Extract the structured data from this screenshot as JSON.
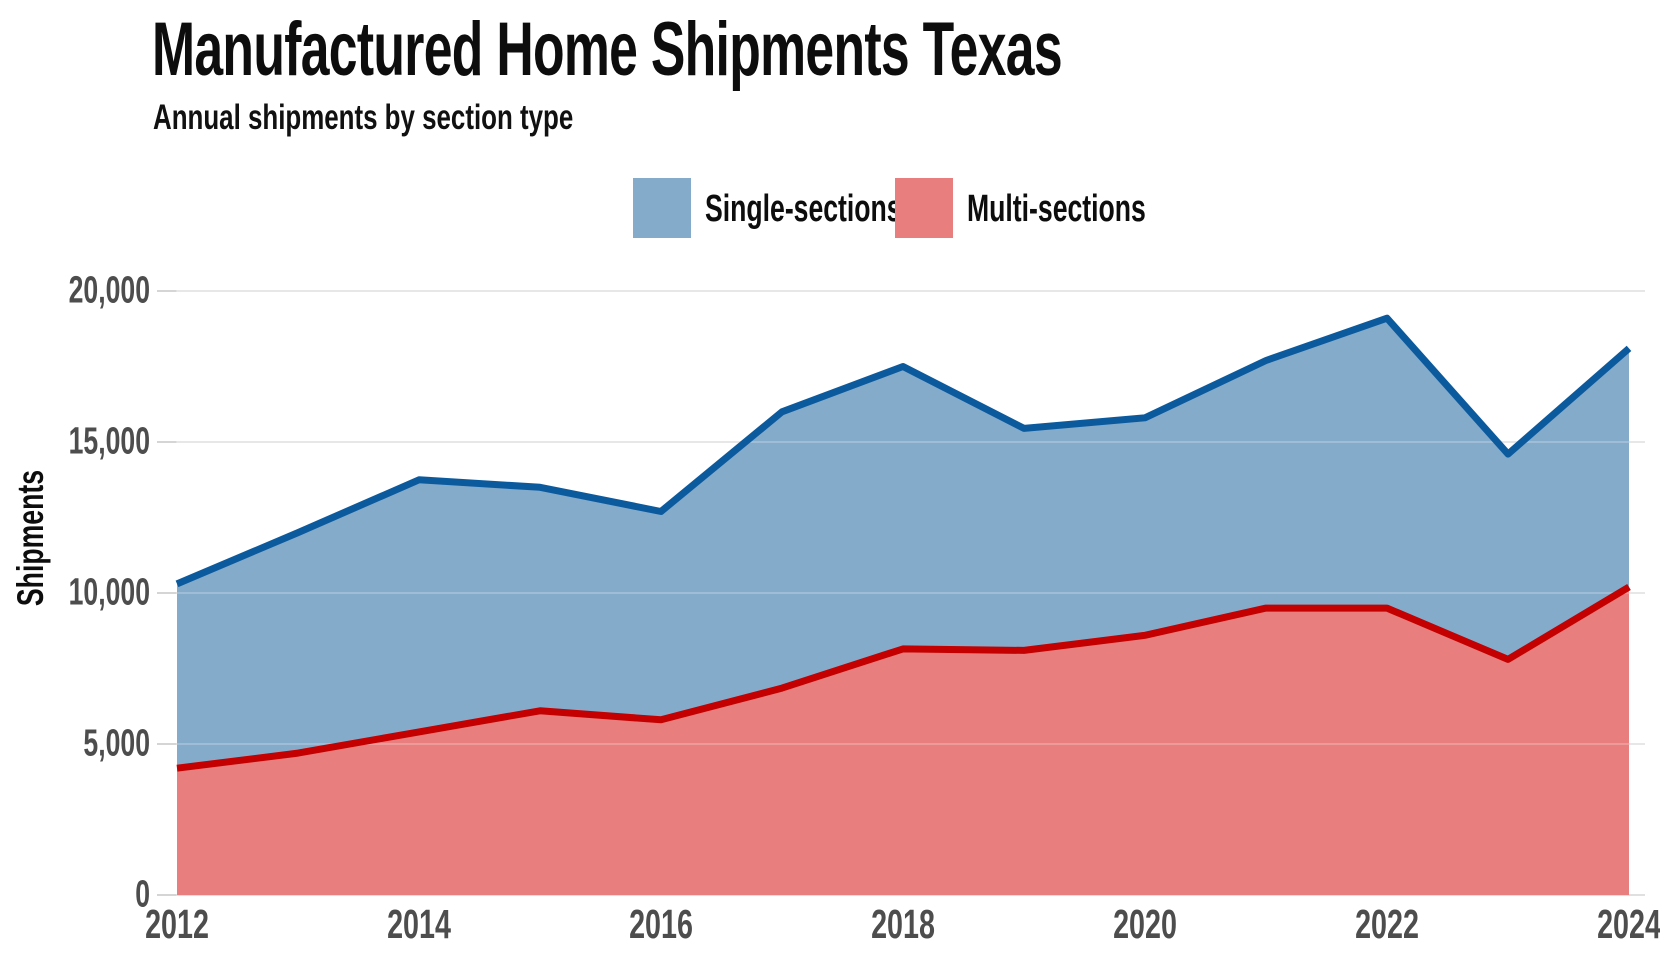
{
  "header": {
    "title": "Manufactured Home Shipments Texas",
    "subtitle": "Annual shipments by section type"
  },
  "legend": {
    "items": [
      {
        "label": "Single-sections",
        "color": "#85abcb"
      },
      {
        "label": "Multi-sections",
        "color": "#e87e7e"
      }
    ]
  },
  "chart_data": {
    "type": "area",
    "stacked": true,
    "title": "Manufactured Home Shipments Texas",
    "subtitle": "Annual shipments by section type",
    "xlabel": "",
    "ylabel": "Shipments",
    "ylim": [
      0,
      20000
    ],
    "grid": "horizontal",
    "legend_position": "top-center",
    "x": [
      2012,
      2013,
      2014,
      2015,
      2016,
      2017,
      2018,
      2019,
      2020,
      2021,
      2022,
      2023,
      2024
    ],
    "series": [
      {
        "name": "Single-sections",
        "color_fill": "#85abcb",
        "color_line": "#0c5a9e",
        "values": [
          6100,
          7300,
          8350,
          7400,
          6900,
          9150,
          9350,
          7350,
          7200,
          8200,
          9600,
          6800,
          7900
        ]
      },
      {
        "name": "Multi-sections",
        "color_fill": "#e87e7e",
        "color_line": "#c40000",
        "values": [
          4200,
          4700,
          5400,
          6100,
          5800,
          6850,
          8150,
          8100,
          8600,
          9500,
          9500,
          7800,
          10200
        ]
      }
    ],
    "stack_order_bottom_to_top": [
      "Multi-sections",
      "Single-sections"
    ],
    "totals": [
      10300,
      12000,
      13750,
      13500,
      12700,
      16000,
      17500,
      15450,
      15800,
      17700,
      19100,
      14600,
      18100
    ],
    "y_tick_labels": [
      "0",
      "5,000",
      "10,000",
      "15,000",
      "20,000"
    ],
    "x_tick_labels": [
      "2012",
      "2014",
      "2016",
      "2018",
      "2020",
      "2022",
      "2024"
    ]
  }
}
